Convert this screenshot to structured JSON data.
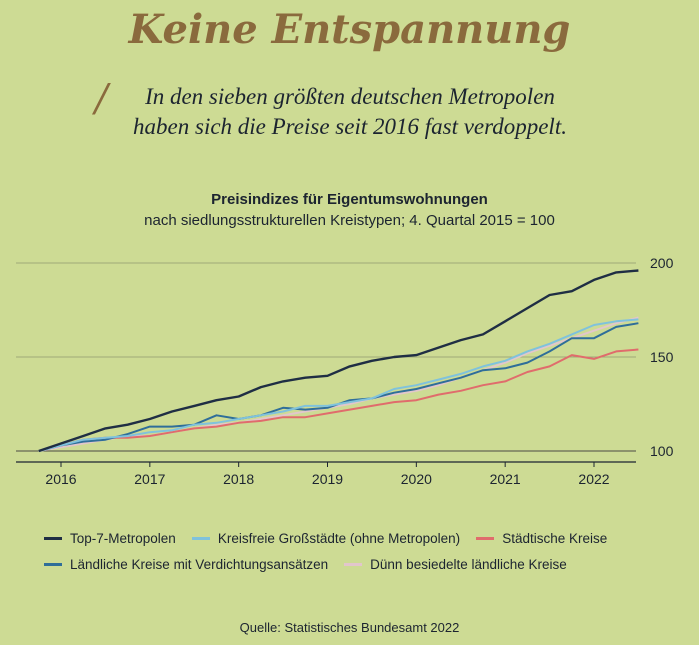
{
  "headline": "Keine Entspannung",
  "subline_1": "In den sieben größten deutschen Metropolen",
  "subline_2": "haben sich die Preise seit 2016 fast verdoppelt.",
  "source": "Quelle: Statistisches Bundesamt 2022",
  "colors": {
    "background": "#cddb94",
    "accent": "#8a6a3d",
    "top7": "#1f2e44",
    "kreisfrei": "#7fc2dc",
    "staedtisch": "#e06c6c",
    "laendlich_verdichtet": "#2f6e99",
    "duenn": "#e2c6cc"
  },
  "chart_data": {
    "type": "line",
    "title": "Preisindizes für Eigentumswohnungen",
    "subtitle": "nach siedlungsstrukturellen Kreistypen; 4. Quartal 2015 = 100",
    "xlabel": "",
    "ylabel": "",
    "x": [
      2015.75,
      2016.0,
      2016.25,
      2016.5,
      2016.75,
      2017.0,
      2017.25,
      2017.5,
      2017.75,
      2018.0,
      2018.25,
      2018.5,
      2018.75,
      2019.0,
      2019.25,
      2019.5,
      2019.75,
      2020.0,
      2020.25,
      2020.5,
      2020.75,
      2021.0,
      2021.25,
      2021.5,
      2021.75,
      2022.0,
      2022.25,
      2022.5
    ],
    "xlim": [
      2015.6,
      2022.6
    ],
    "xticks": [
      2016,
      2017,
      2018,
      2019,
      2020,
      2021,
      2022
    ],
    "ylim": [
      98,
      205
    ],
    "yticks": [
      100,
      150,
      200
    ],
    "grid": "horizontal",
    "legend": "bottom",
    "series": [
      {
        "name": "Top-7-Metropolen",
        "color": "#1f2e44",
        "values": [
          100,
          104,
          108,
          112,
          114,
          117,
          121,
          124,
          127,
          129,
          134,
          137,
          139,
          140,
          145,
          148,
          150,
          151,
          155,
          159,
          162,
          169,
          176,
          183,
          185,
          191,
          195,
          196
        ]
      },
      {
        "name": "Kreisfreie Großstädte (ohne Metropolen)",
        "color": "#7fc2dc",
        "values": [
          100,
          103,
          106,
          107,
          108,
          110,
          111,
          114,
          115,
          117,
          119,
          121,
          124,
          124,
          126,
          128,
          133,
          135,
          138,
          141,
          145,
          148,
          153,
          157,
          162,
          167,
          169,
          170
        ]
      },
      {
        "name": "Städtische Kreise",
        "color": "#e06c6c",
        "values": [
          100,
          103,
          106,
          107,
          107,
          108,
          110,
          112,
          113,
          115,
          116,
          118,
          118,
          120,
          122,
          124,
          126,
          127,
          130,
          132,
          135,
          137,
          142,
          145,
          151,
          149,
          153,
          154
        ]
      },
      {
        "name": "Ländliche Kreise mit Verdichtungsansätzen",
        "color": "#2f6e99",
        "values": [
          100,
          103,
          105,
          106,
          109,
          113,
          113,
          114,
          119,
          117,
          119,
          123,
          122,
          123,
          127,
          128,
          131,
          133,
          136,
          139,
          143,
          144,
          147,
          153,
          160,
          160,
          166,
          168
        ]
      },
      {
        "name": "Dünn besiedelte ländliche Kreise",
        "color": "#e2c6cc",
        "values": [
          100,
          102,
          104,
          106,
          108,
          108,
          110,
          112,
          114,
          115,
          117,
          119,
          121,
          123,
          125,
          128,
          130,
          132,
          135,
          139,
          143,
          147,
          152,
          156,
          160,
          164,
          168,
          171
        ]
      }
    ]
  }
}
